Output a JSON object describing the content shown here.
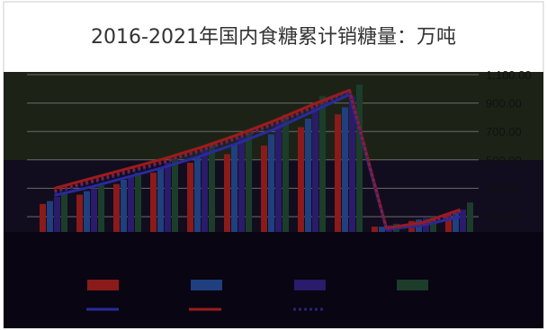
{
  "chart_data": {
    "type": "bar",
    "title": "2016-2021年国内食糖累计销糖量：万吨",
    "xlabel": "",
    "ylabel": "",
    "ylim": [
      0,
      1100
    ],
    "yticks": [
      "1,100.00",
      "900.00",
      "700.00",
      "500.00",
      "300.00",
      "100.00"
    ],
    "ytick_values": [
      1100,
      900,
      700,
      500,
      300,
      100
    ],
    "grid": true,
    "legend_position": "bottom",
    "bar_series": [
      {
        "color": "#8b1a1a",
        "values": [
          190,
          255,
          330,
          410,
          480,
          540,
          600,
          730,
          820,
          30,
          70,
          120
        ]
      },
      {
        "color": "#1f3f7f",
        "values": [
          210,
          280,
          360,
          440,
          520,
          610,
          680,
          790,
          870,
          30,
          80,
          130
        ]
      },
      {
        "color": "#2a1b6b",
        "values": [
          240,
          300,
          390,
          480,
          570,
          660,
          760,
          870,
          950,
          40,
          90,
          150
        ]
      },
      {
        "color": "#1b3d2a",
        "values": [
          260,
          320,
          410,
          510,
          610,
          710,
          820,
          950,
          1030,
          50,
          100,
          200
        ]
      }
    ],
    "line_series": [
      {
        "color": "#2a2a9c",
        "style": "solid",
        "values": [
          250,
          310,
          380,
          450,
          530,
          620,
          720,
          840,
          960,
          10,
          40,
          100
        ]
      },
      {
        "color": "#9c1c1c",
        "style": "solid",
        "values": [
          300,
          370,
          440,
          510,
          590,
          680,
          780,
          890,
          990,
          20,
          60,
          150
        ]
      },
      {
        "color": "#252577",
        "style": "dotted",
        "values": [
          270,
          340,
          410,
          480,
          560,
          650,
          750,
          860,
          980,
          10,
          40,
          130
        ]
      },
      {
        "color": "#8a1a3a",
        "style": "dotted",
        "values": [
          280,
          350,
          420,
          490,
          570,
          660,
          760,
          870,
          990,
          20,
          50,
          140
        ]
      }
    ]
  }
}
